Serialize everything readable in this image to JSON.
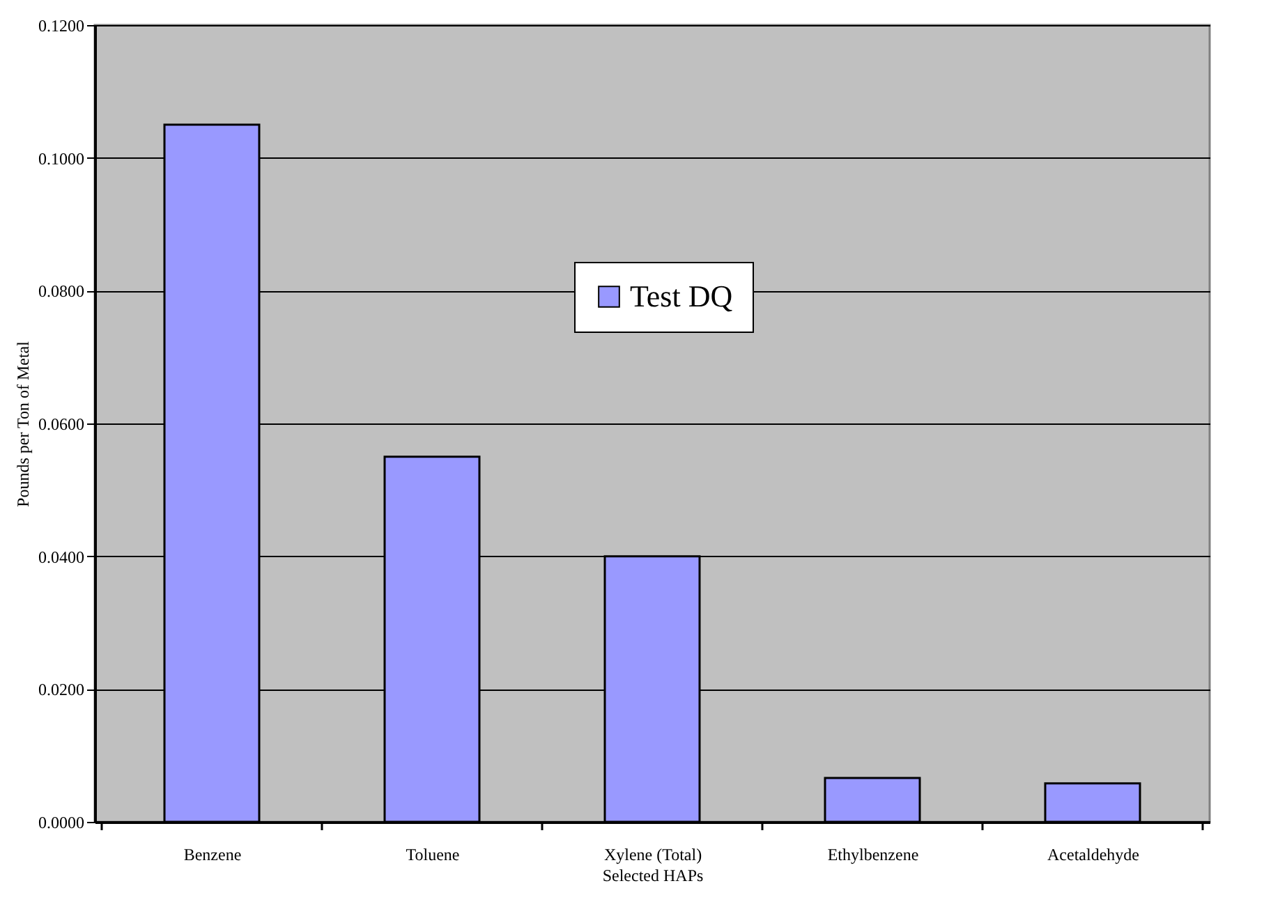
{
  "chart_data": {
    "type": "bar",
    "xlabel": "Selected HAPs",
    "ylabel": "Pounds per Ton of Metal",
    "categories": [
      "Benzene",
      "Toluene",
      "Xylene (Total)",
      "Ethylbenzene",
      "Acetaldehyde"
    ],
    "series": [
      {
        "name": "Test DQ",
        "color": "#9999ff",
        "values": [
          0.105,
          0.055,
          0.04,
          0.0066,
          0.0058
        ]
      }
    ],
    "ylim": [
      0,
      0.12
    ],
    "yticks": [
      {
        "value": 0,
        "label": "0.0000"
      },
      {
        "value": 0.02,
        "label": "0.0200"
      },
      {
        "value": 0.04,
        "label": "0.0400"
      },
      {
        "value": 0.06,
        "label": "0.0600"
      },
      {
        "value": 0.08,
        "label": "0.0800"
      },
      {
        "value": 0.1,
        "label": "0.1000"
      },
      {
        "value": 0.12,
        "label": "0.1200"
      }
    ],
    "grid": "y",
    "legend": "top"
  }
}
